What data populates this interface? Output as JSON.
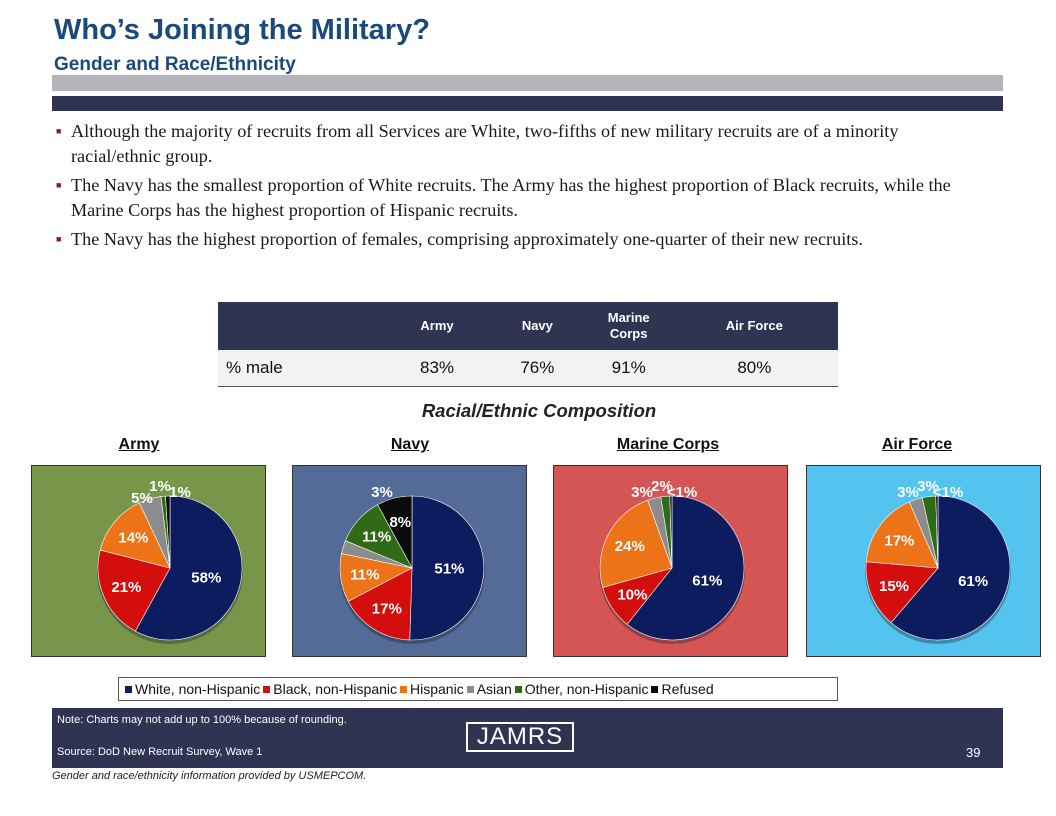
{
  "header": {
    "title": "Who’s Joining the Military?",
    "subtitle": "Gender and Race/Ethnicity"
  },
  "bullets": [
    "Although the majority of recruits from all Services are White, two-fifths of new military recruits are of a minority racial/ethnic group.",
    "The Navy has the smallest proportion of White recruits.  The Army has the highest proportion of Black recruits, while the Marine Corps has the highest proportion of Hispanic recruits.",
    "The Navy has the highest proportion of females, comprising approximately one-quarter of their new recruits."
  ],
  "male_table": {
    "columns": [
      "Army",
      "Navy",
      "Marine Corps",
      "Air Force"
    ],
    "row_label": "% male",
    "values": [
      "83%",
      "76%",
      "91%",
      "80%"
    ]
  },
  "colors": {
    "white": "#0d1c5e",
    "black": "#d40d0d",
    "hispanic": "#ec7318",
    "asian": "#8c8c8c",
    "other": "#2f6a15",
    "refused": "#0b0b0b"
  },
  "chart_data": {
    "type": "pie",
    "title": "Racial/Ethnic Composition",
    "categories": [
      "White, non-Hispanic",
      "Black, non-Hispanic",
      "Hispanic",
      "Asian",
      "Other, non-Hispanic",
      "Refused"
    ],
    "charts": [
      {
        "name": "Army",
        "background": "#77964a",
        "values": [
          58,
          21,
          14,
          5,
          1,
          1
        ],
        "labels": [
          "58%",
          "21%",
          "14%",
          "5%",
          "1%",
          "1%"
        ]
      },
      {
        "name": "Navy",
        "background": "#536b96",
        "values": [
          51,
          17,
          11,
          3,
          11,
          8
        ],
        "labels": [
          "51%",
          "17%",
          "11%",
          "3%",
          "11%",
          "8%"
        ]
      },
      {
        "name": "Marine Corps",
        "background": "#d55555",
        "values": [
          61,
          10,
          24,
          3,
          2,
          0.5
        ],
        "labels": [
          "61%",
          "10%",
          "24%",
          "3%",
          "2%",
          "<1%"
        ]
      },
      {
        "name": "Air Force",
        "background": "#53c4ef",
        "values": [
          61,
          15,
          17,
          3,
          3,
          0.5
        ],
        "labels": [
          "61%",
          "15%",
          "17%",
          "3%",
          "3%",
          "<1%"
        ]
      }
    ]
  },
  "footer": {
    "note": "Note:  Charts may not add up to 100% because of rounding.",
    "source": "Source:  DoD New Recruit Survey, Wave 1",
    "logo": "JAMRS",
    "page": "39",
    "credit": "Gender and race/ethnicity information provided by USMEPCOM."
  }
}
